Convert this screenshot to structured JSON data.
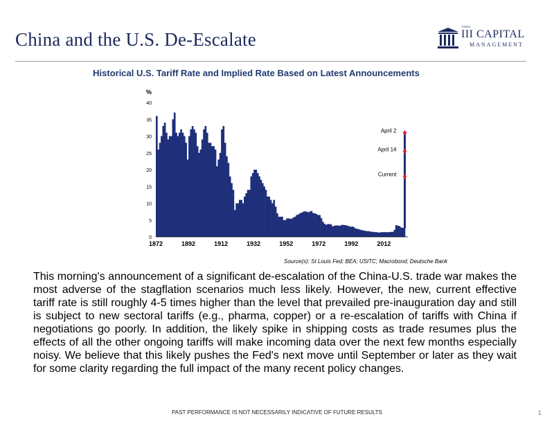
{
  "slide": {
    "title": "China and the U.S. De-Escalate",
    "logo": {
      "small": "THREE",
      "main": "III CAPITAL",
      "sub": "MANAGEMENT"
    },
    "chart_heading": "Historical U.S. Tariff Rate and Implied Rate Based on Latest Announcements",
    "source": "Source(s): St Louis Fed; BEA; USITC; Macrobond; Deutsche Bank",
    "body": "This morning's announcement of a significant de-escalation of the China-U.S. trade war makes the most adverse of the stagflation scenarios much less likely. However, the new, current effective tariff rate is still roughly 4-5 times higher than the level that prevailed pre-inauguration day and still is subject to new sectoral tariffs (e.g., pharma, copper) or a re-escalation of tariffs with China if negotiations go poorly. In addition, the likely spike in shipping costs as trade resumes plus the effects of all the other ongoing tariffs will make incoming data over the next few months especially noisy. We believe that this likely pushes the Fed's next move until September or later as they wait for some clarity regarding the full impact of the many recent policy changes.",
    "footer": "PAST PERFORMANCE IS NOT NECESSARILY INDICATIVE OF FUTURE RESULTS",
    "page_number": "1"
  },
  "colors": {
    "title": "#1b2a5c",
    "bars": "#1f2f7a",
    "marker": "#e8182c",
    "chart_heading": "#1f3a6e"
  },
  "chart_data": {
    "type": "bar",
    "ylabel": "%",
    "ylim": [
      0,
      40
    ],
    "yticks": [
      0,
      5,
      10,
      15,
      20,
      25,
      30,
      35,
      40
    ],
    "xlim": [
      1872,
      2025
    ],
    "xticks": [
      1872,
      1892,
      1912,
      1932,
      1952,
      1972,
      1992,
      2012
    ],
    "x": [
      1872,
      1873,
      1874,
      1875,
      1876,
      1877,
      1878,
      1879,
      1880,
      1881,
      1882,
      1883,
      1884,
      1885,
      1886,
      1887,
      1888,
      1889,
      1890,
      1891,
      1892,
      1893,
      1894,
      1895,
      1896,
      1897,
      1898,
      1899,
      1900,
      1901,
      1902,
      1903,
      1904,
      1905,
      1906,
      1907,
      1908,
      1909,
      1910,
      1911,
      1912,
      1913,
      1914,
      1915,
      1916,
      1917,
      1918,
      1919,
      1920,
      1921,
      1922,
      1923,
      1924,
      1925,
      1926,
      1927,
      1928,
      1929,
      1930,
      1931,
      1932,
      1933,
      1934,
      1935,
      1936,
      1937,
      1938,
      1939,
      1940,
      1941,
      1942,
      1943,
      1944,
      1945,
      1946,
      1947,
      1948,
      1949,
      1950,
      1951,
      1952,
      1953,
      1954,
      1955,
      1956,
      1957,
      1958,
      1959,
      1960,
      1961,
      1962,
      1963,
      1964,
      1965,
      1966,
      1967,
      1968,
      1969,
      1970,
      1971,
      1972,
      1973,
      1974,
      1975,
      1976,
      1977,
      1978,
      1979,
      1980,
      1981,
      1982,
      1983,
      1984,
      1985,
      1986,
      1987,
      1988,
      1989,
      1990,
      1991,
      1992,
      1993,
      1994,
      1995,
      1996,
      1997,
      1998,
      1999,
      2000,
      2001,
      2002,
      2003,
      2004,
      2005,
      2006,
      2007,
      2008,
      2009,
      2010,
      2011,
      2012,
      2013,
      2014,
      2015,
      2016,
      2017,
      2018,
      2019,
      2020,
      2021,
      2022,
      2023,
      2024
    ],
    "values": [
      36,
      26,
      28,
      30,
      33,
      34,
      31,
      29,
      30,
      30,
      35,
      37,
      31,
      30,
      31,
      32,
      31,
      30,
      28,
      23,
      30,
      32,
      33,
      32,
      31,
      27,
      25,
      26,
      29,
      32,
      33,
      31,
      28,
      28,
      27,
      27,
      26,
      21,
      23,
      25,
      32,
      33,
      28,
      24,
      22,
      18,
      16,
      14,
      8,
      10,
      10,
      11,
      11,
      10,
      12,
      13,
      14,
      14,
      18,
      19,
      20,
      20,
      19,
      18,
      17,
      16,
      15,
      14,
      12,
      12,
      11,
      10,
      11,
      9,
      7,
      6,
      6,
      6,
      5,
      5,
      5.5,
      5.5,
      5.4,
      5.4,
      5.8,
      6,
      6.5,
      6.7,
      7,
      7.2,
      7.5,
      7.6,
      7.5,
      7.3,
      7.5,
      7.7,
      7.1,
      7,
      6.8,
      6.5,
      6.5,
      5.6,
      4.5,
      3.9,
      3.6,
      3.8,
      3.8,
      3.7,
      3.1,
      3.3,
      3.4,
      3.4,
      3.3,
      3.4,
      3.6,
      3.5,
      3.5,
      3.3,
      3.2,
      3,
      3.1,
      2.9,
      2.5,
      2.4,
      2.3,
      2.1,
      2,
      1.9,
      1.8,
      1.7,
      1.7,
      1.6,
      1.5,
      1.5,
      1.4,
      1.4,
      1.3,
      1.3,
      1.4,
      1.4,
      1.4,
      1.4,
      1.4,
      1.4,
      1.5,
      1.5,
      2.1,
      3.5,
      3.3,
      3.2,
      2.8,
      2.7,
      2.6
    ],
    "spike": {
      "x": 2025,
      "base": 2.6
    },
    "annotations": [
      {
        "label": "April 2",
        "value": 31
      },
      {
        "label": "April 14",
        "value": 25.5
      },
      {
        "label": "Current",
        "value": 18
      }
    ]
  }
}
